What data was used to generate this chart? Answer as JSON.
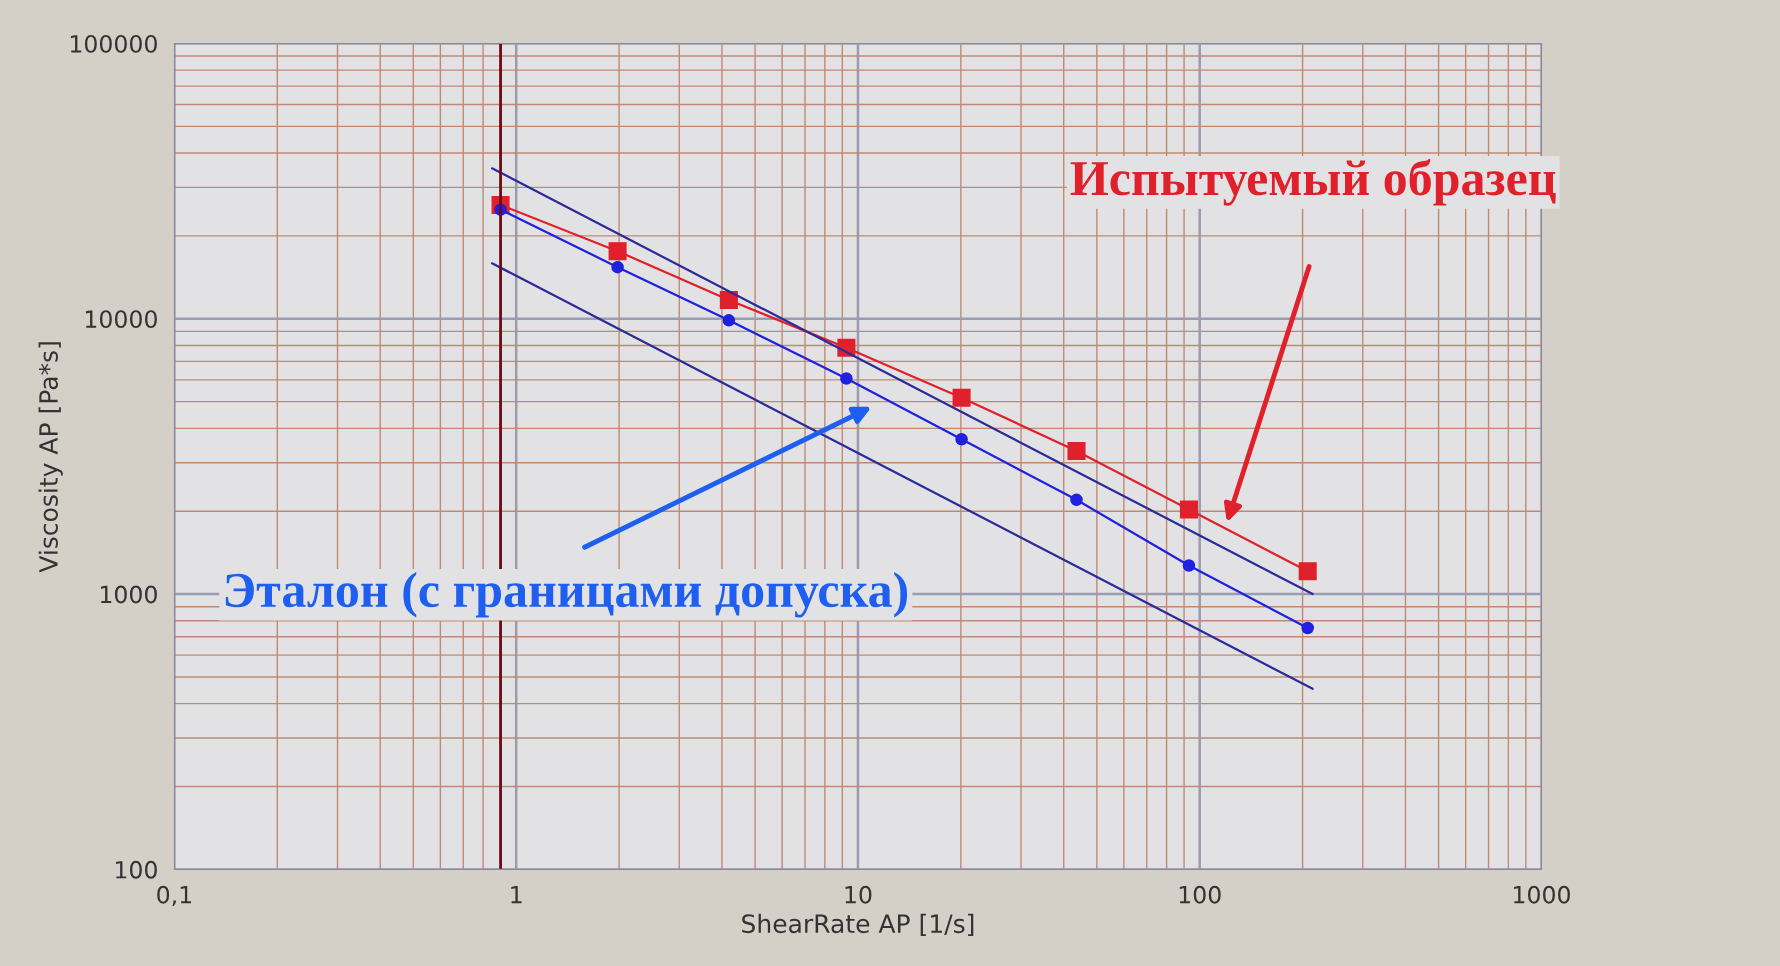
{
  "chart_data": {
    "type": "line",
    "xlabel": "ShearRate AP [1/s]",
    "ylabel": "Viscosity AP [Pa*s]",
    "log": "xy",
    "grid": true,
    "legend": false,
    "xlim": [
      0.1,
      1000
    ],
    "ylim": [
      100,
      100000
    ],
    "xticks": [
      {
        "value": 0.1,
        "label": "0,1"
      },
      {
        "value": 0.2,
        "label": null
      },
      {
        "value": 0.3,
        "label": null
      },
      {
        "value": 0.4,
        "label": null
      },
      {
        "value": 0.5,
        "label": null
      },
      {
        "value": 0.6,
        "label": null
      },
      {
        "value": 0.7,
        "label": null
      },
      {
        "value": 0.8,
        "label": null
      },
      {
        "value": 0.9,
        "label": null
      },
      1,
      {
        "value": 2,
        "label": null
      },
      {
        "value": 3,
        "label": null
      },
      {
        "value": 4,
        "label": null
      },
      {
        "value": 5,
        "label": null
      },
      {
        "value": 6,
        "label": null
      },
      {
        "value": 7,
        "label": null
      },
      {
        "value": 8,
        "label": null
      },
      {
        "value": 9,
        "label": null
      },
      10,
      {
        "value": 20,
        "label": null
      },
      {
        "value": 30,
        "label": null
      },
      {
        "value": 40,
        "label": null
      },
      {
        "value": 50,
        "label": null
      },
      {
        "value": 60,
        "label": null
      },
      {
        "value": 70,
        "label": null
      },
      {
        "value": 80,
        "label": null
      },
      {
        "value": 90,
        "label": null
      },
      100,
      {
        "value": 200,
        "label": null
      },
      {
        "value": 300,
        "label": null
      },
      {
        "value": 400,
        "label": null
      },
      {
        "value": 500,
        "label": null
      },
      {
        "value": 600,
        "label": null
      },
      {
        "value": 700,
        "label": null
      },
      {
        "value": 800,
        "label": null
      },
      {
        "value": 900,
        "label": null
      },
      1000
    ],
    "yticks": [
      100,
      {
        "value": 200,
        "label": null
      },
      {
        "value": 300,
        "label": null
      },
      {
        "value": 400,
        "label": null
      },
      {
        "value": 500,
        "label": null
      },
      {
        "value": 600,
        "label": null
      },
      {
        "value": 700,
        "label": null
      },
      {
        "value": 800,
        "label": null
      },
      {
        "value": 900,
        "label": null
      },
      1000,
      {
        "value": 2000,
        "label": null
      },
      {
        "value": 3000,
        "label": null
      },
      {
        "value": 4000,
        "label": null
      },
      {
        "value": 5000,
        "label": null
      },
      {
        "value": 6000,
        "label": null
      },
      {
        "value": 7000,
        "label": null
      },
      {
        "value": 8000,
        "label": null
      },
      {
        "value": 9000,
        "label": null
      },
      10000,
      {
        "value": 20000,
        "label": null
      },
      {
        "value": 30000,
        "label": null
      },
      {
        "value": 40000,
        "label": null
      },
      {
        "value": 50000,
        "label": null
      },
      {
        "value": 60000,
        "label": null
      },
      {
        "value": 70000,
        "label": null
      },
      {
        "value": 80000,
        "label": null
      },
      {
        "value": 90000,
        "label": null
      },
      100000
    ],
    "series": [
      {
        "color": "#e0202a",
        "marker": "square",
        "x": [
          0.9,
          1.98,
          4.19,
          9.25,
          20.1,
          43.6,
          93,
          207
        ],
        "values": [
          25900,
          17600,
          11700,
          7850,
          5170,
          3310,
          2030,
          1210
        ]
      },
      {
        "color": "#2020e0",
        "marker": "circle",
        "x": [
          0.9,
          1.98,
          4.19,
          9.25,
          20.1,
          43.6,
          93,
          207
        ],
        "values": [
          24900,
          15400,
          9870,
          6070,
          3650,
          2200,
          1270,
          753
        ]
      },
      {
        "color": "#2a2a9a",
        "marker": "none",
        "x": [
          0.85,
          214
        ],
        "values": [
          35200,
          1000
        ]
      },
      {
        "color": "#2a2a9a",
        "marker": "none",
        "x": [
          0.85,
          214
        ],
        "values": [
          15900,
          453
        ]
      }
    ],
    "ref_lines": [
      {
        "axis": "x",
        "value": 0.9,
        "color": "#6a0a14"
      }
    ],
    "annotations": [
      "Испытуемый образец",
      "Эталон (с границами допуска)"
    ]
  }
}
